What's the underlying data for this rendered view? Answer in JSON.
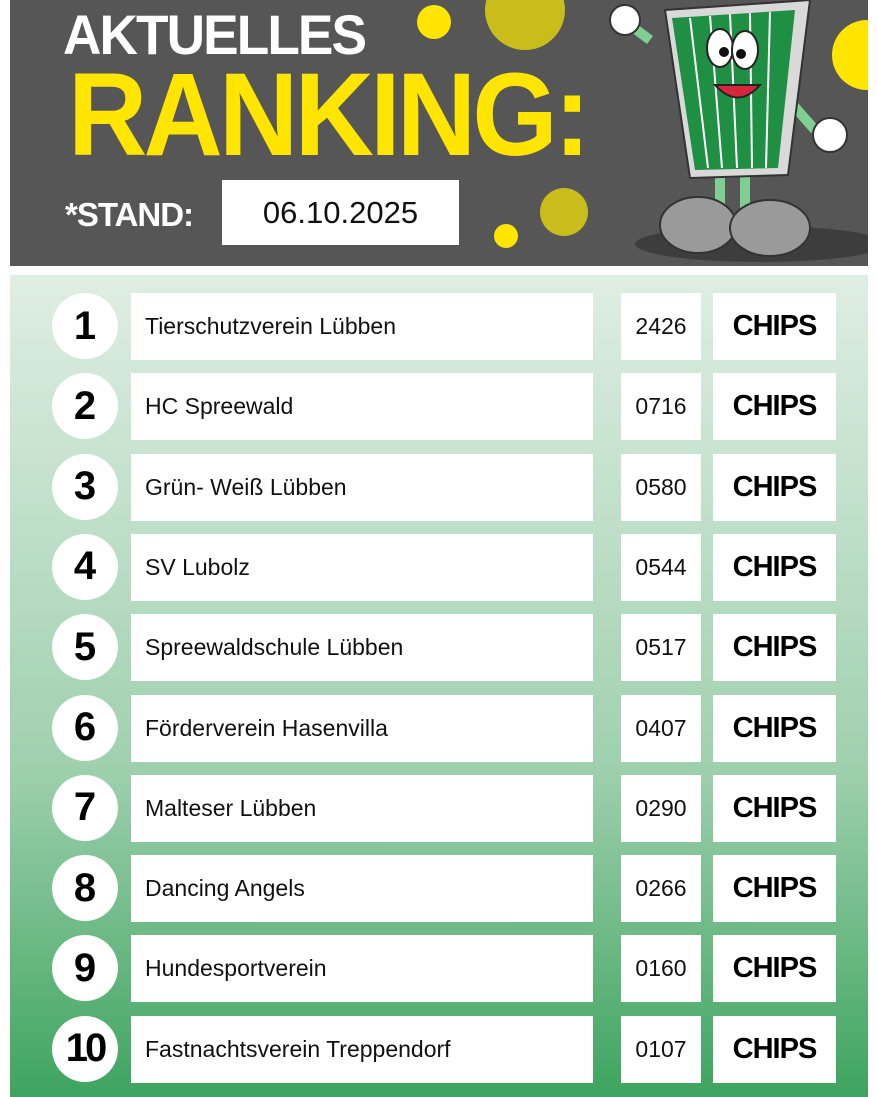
{
  "header": {
    "line1": "AKTUELLES",
    "line2": "RANKING:",
    "stand_label": "*STAND:",
    "date": "06.10.2025"
  },
  "colors": {
    "header_bg": "#565656",
    "title_yellow": "#ffe500",
    "mascot_green": "#1f8f43"
  },
  "ranking": [
    {
      "rank": "1",
      "name": "Tierschutzverein Lübben",
      "count": "2426",
      "unit": "CHIPS"
    },
    {
      "rank": "2",
      "name": "HC Spreewald",
      "count": "0716",
      "unit": "CHIPS"
    },
    {
      "rank": "3",
      "name": "Grün- Weiß Lübben",
      "count": "0580",
      "unit": "CHIPS"
    },
    {
      "rank": "4",
      "name": "SV Lubolz",
      "count": "0544",
      "unit": "CHIPS"
    },
    {
      "rank": "5",
      "name": "Spreewaldschule Lübben",
      "count": "0517",
      "unit": "CHIPS"
    },
    {
      "rank": "6",
      "name": "Förderverein Hasenvilla",
      "count": "0407",
      "unit": "CHIPS"
    },
    {
      "rank": "7",
      "name": "Malteser Lübben",
      "count": "0290",
      "unit": "CHIPS"
    },
    {
      "rank": "8",
      "name": "Dancing Angels",
      "count": "0266",
      "unit": "CHIPS"
    },
    {
      "rank": "9",
      "name": "Hundesportverein",
      "count": "0160",
      "unit": "CHIPS"
    },
    {
      "rank": "10",
      "name": "Fastnachtsverein Treppendorf",
      "count": "0107",
      "unit": "CHIPS"
    }
  ]
}
